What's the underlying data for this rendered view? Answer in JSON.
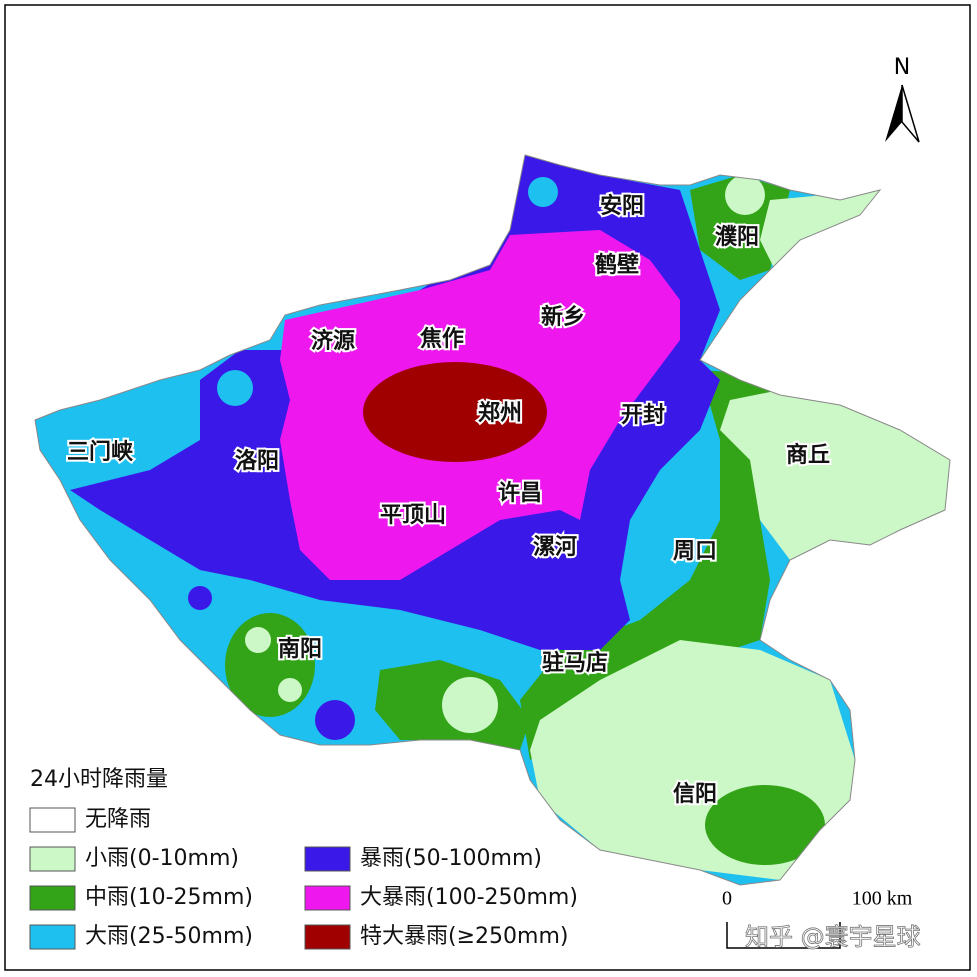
{
  "north": "N",
  "cities": [
    {
      "label": "安阳"
    },
    {
      "label": "濮阳"
    },
    {
      "label": "鹤壁"
    },
    {
      "label": "新乡"
    },
    {
      "label": "济源"
    },
    {
      "label": "焦作"
    },
    {
      "label": "郑州"
    },
    {
      "label": "开封"
    },
    {
      "label": "三门峡"
    },
    {
      "label": "洛阳"
    },
    {
      "label": "商丘"
    },
    {
      "label": "许昌"
    },
    {
      "label": "平顶山"
    },
    {
      "label": "漯河"
    },
    {
      "label": "周口"
    },
    {
      "label": "南阳"
    },
    {
      "label": "驻马店"
    },
    {
      "label": "信阳"
    }
  ],
  "legend": {
    "title": "24小时降雨量",
    "items": [
      {
        "label": "无降雨",
        "color": "#ffffff"
      },
      {
        "label": "小雨(0-10mm)",
        "color": "#ccf7c6"
      },
      {
        "label": "中雨(10-25mm)",
        "color": "#33a318"
      },
      {
        "label": "大雨(25-50mm)",
        "color": "#1ec0f0"
      },
      {
        "label": "暴雨(50-100mm)",
        "color": "#3a18e8"
      },
      {
        "label": "大暴雨(100-250mm)",
        "color": "#ee18ee"
      },
      {
        "label": "特大暴雨(≥250mm)",
        "color": "#a00000"
      }
    ]
  },
  "scale": {
    "start": "0",
    "end": "100 km"
  },
  "watermark": "知乎 @寰宇星球"
}
